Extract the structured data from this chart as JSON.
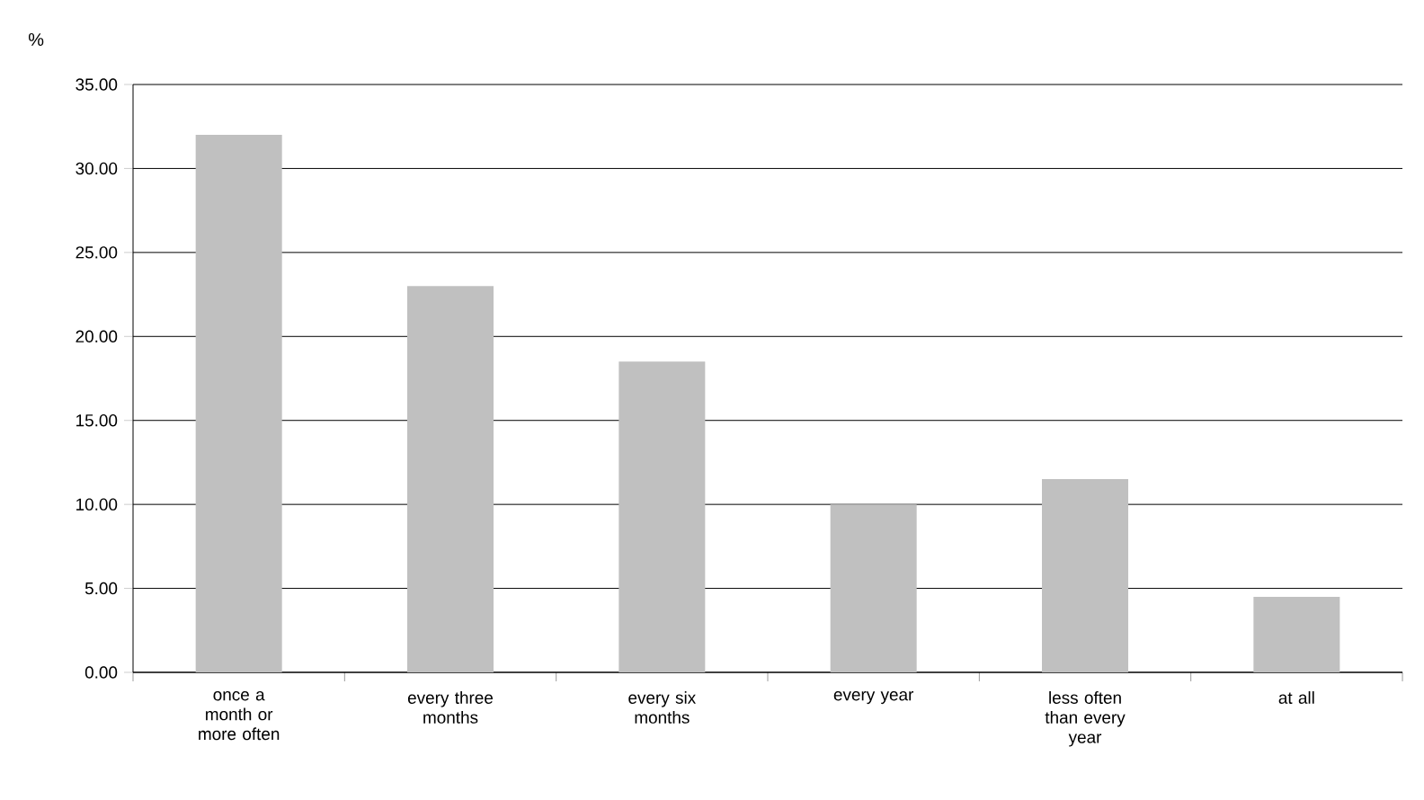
{
  "chart_data": {
    "type": "bar",
    "ylabel": "%",
    "categories": [
      "once a month or more often",
      "every three months",
      "every six months",
      "every year",
      "less often than every year",
      "at all"
    ],
    "values": [
      32.0,
      23.0,
      18.5,
      10.0,
      11.5,
      4.5
    ],
    "color": "#c0c0c0",
    "ylim": [
      0,
      35
    ],
    "yticks": [
      {
        "value": 0,
        "label": "0.00"
      },
      {
        "value": 5,
        "label": "5.00"
      },
      {
        "value": 10,
        "label": "10.00"
      },
      {
        "value": 15,
        "label": "15.00"
      },
      {
        "value": 20,
        "label": "20.00"
      },
      {
        "value": 25,
        "label": "25.00"
      },
      {
        "value": 30,
        "label": "30.00"
      },
      {
        "value": 35,
        "label": "35.00"
      }
    ],
    "grid": "y"
  }
}
